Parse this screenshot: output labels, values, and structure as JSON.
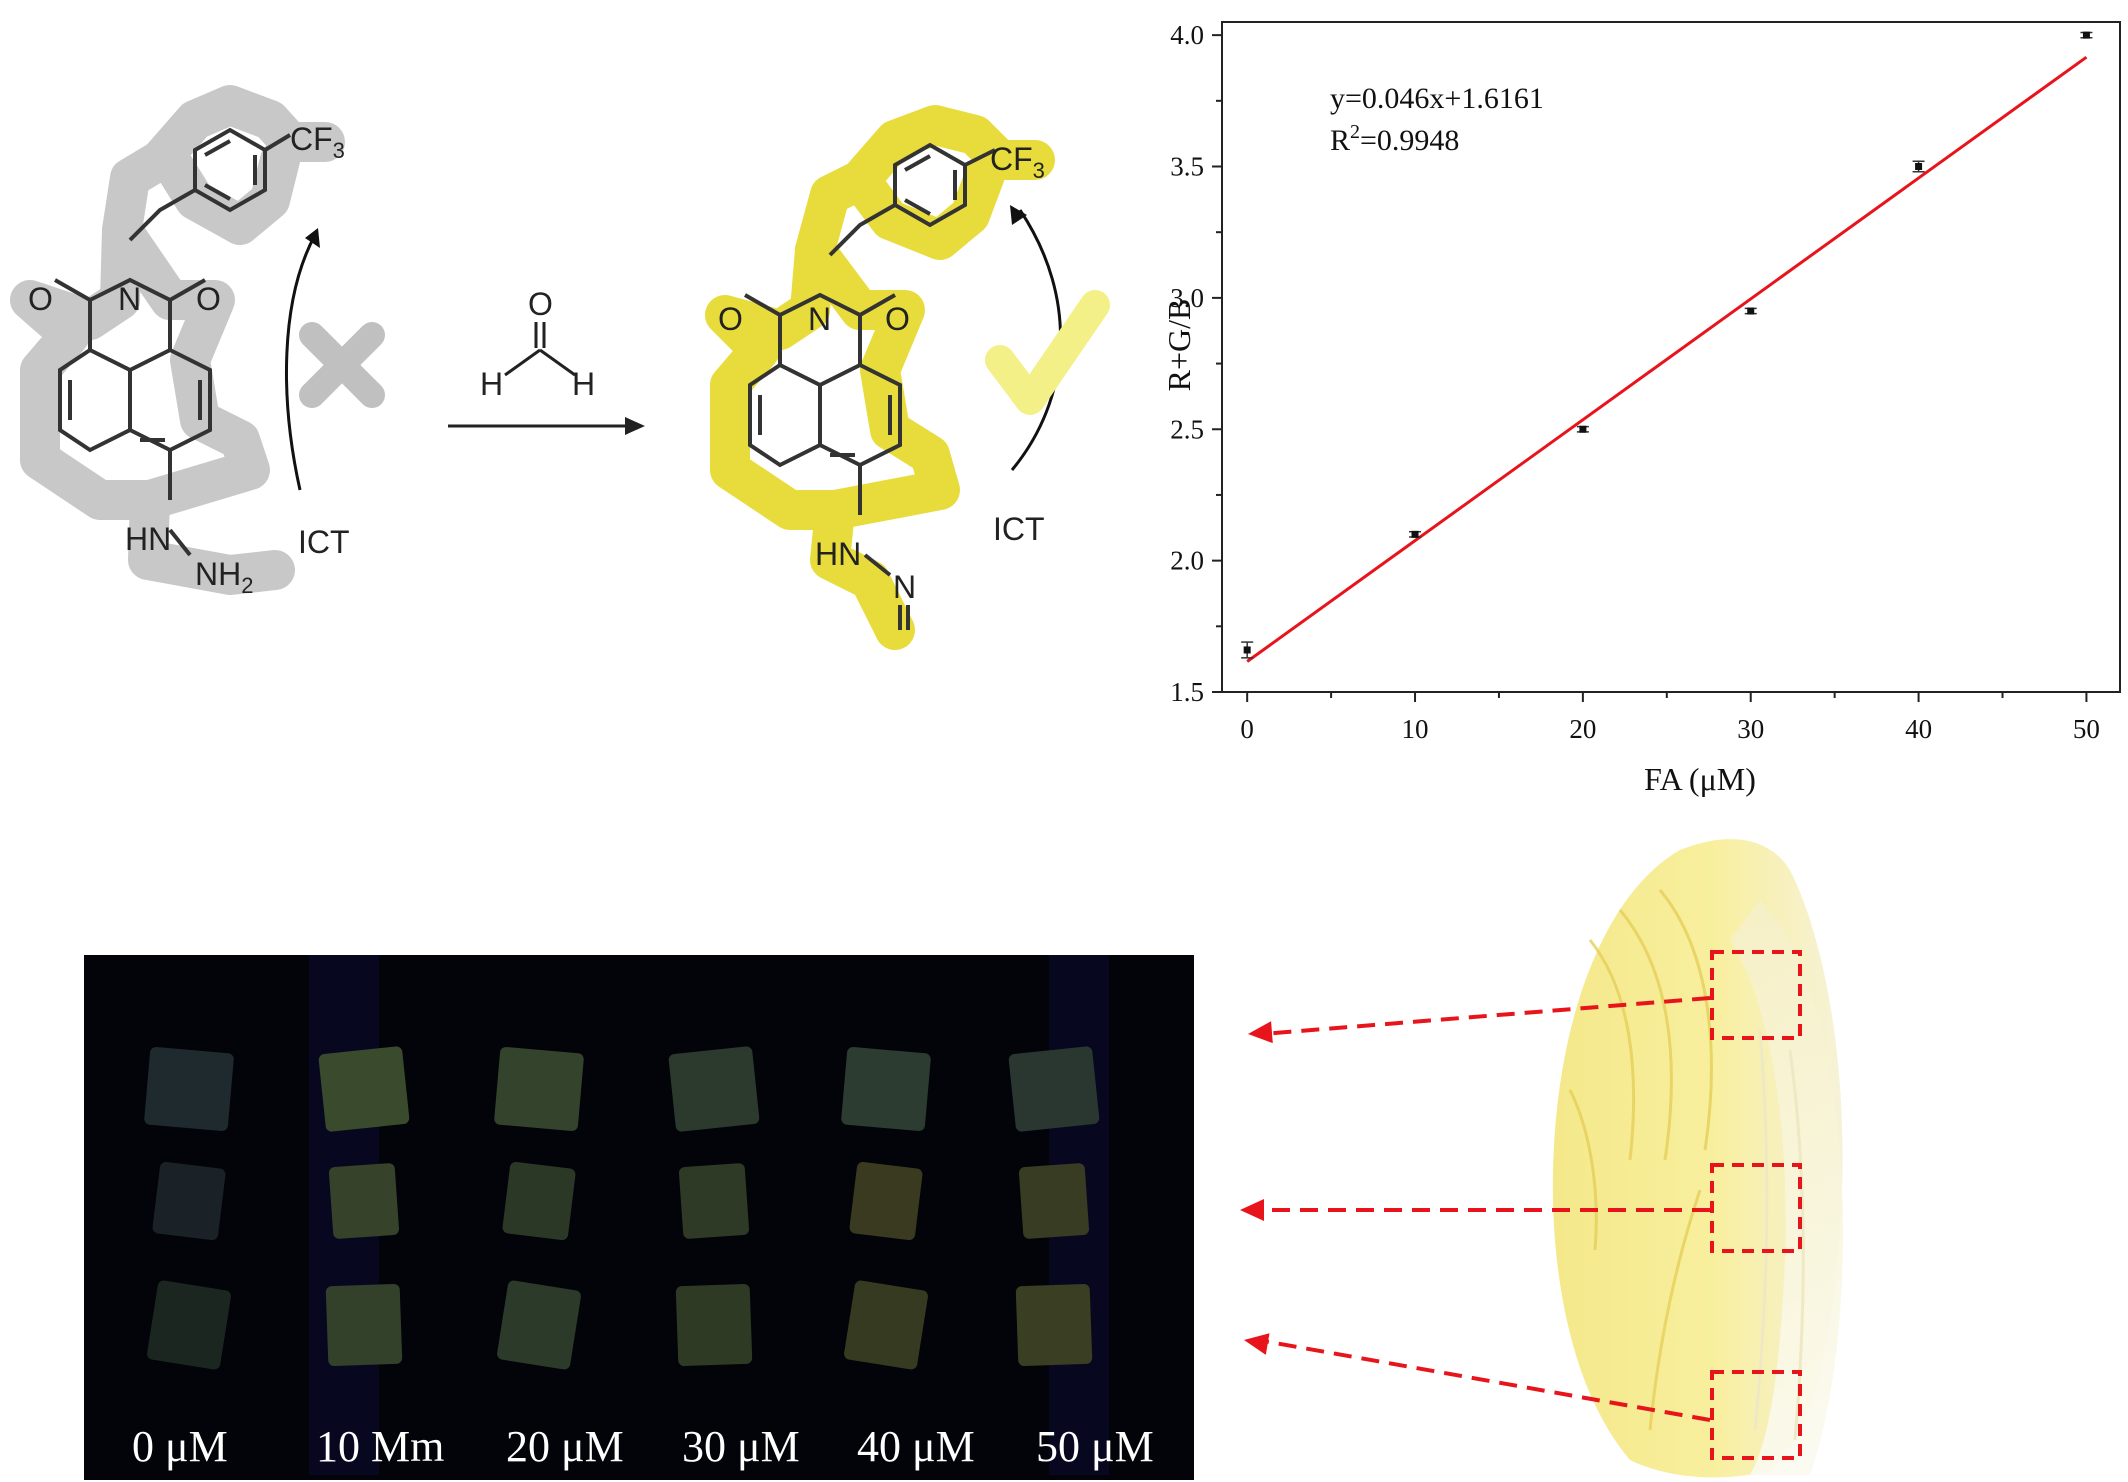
{
  "scheme": {
    "probe_labels": {
      "cf3": "CF",
      "cf3_sub": "3",
      "amine_hn": "HN",
      "amine_nh2": "NH",
      "amine_sub": "2",
      "o_left": "O",
      "o_right": "O",
      "n": "N",
      "ict": "ICT"
    },
    "reagent": {
      "o": "O",
      "h_left": "H",
      "h_right": "H"
    },
    "product_labels": {
      "cf3": "CF",
      "cf3_sub": "3",
      "hn": "HN",
      "n": "N",
      "o_left": "O",
      "o_right": "O",
      "n_imide": "N",
      "ict": "ICT"
    },
    "colors": {
      "probe_halo": "#c8c8c8",
      "product_halo": "#e8dc3c",
      "check": "#f4f088",
      "cross": "#c0c0c0"
    }
  },
  "chart_data": {
    "type": "scatter",
    "x": [
      0,
      10,
      20,
      30,
      40,
      50
    ],
    "y": [
      1.66,
      2.1,
      2.5,
      2.95,
      3.5,
      4.0
    ],
    "error": [
      0.03,
      0.01,
      0.01,
      0.01,
      0.02,
      0.01
    ],
    "fit": {
      "slope": 0.046,
      "intercept": 1.6161,
      "color": "#e8141c"
    },
    "annotation_eq": "y=0.046x+1.6161",
    "annotation_r2_prefix": "R",
    "annotation_r2_sup": "2",
    "annotation_r2_value": "=0.9948",
    "xlabel": "FA (μM)",
    "ylabel": "R+G/B",
    "xlim": [
      -1.5,
      52
    ],
    "ylim": [
      1.5,
      4.05
    ],
    "xticks": [
      "0",
      "10",
      "20",
      "30",
      "40",
      "50"
    ],
    "yticks": [
      "1.5",
      "2.0",
      "2.5",
      "3.0",
      "3.5",
      "4.0"
    ]
  },
  "photo": {
    "labels": [
      "0 μM",
      "10 Mm",
      "20 μM",
      "30 μM",
      "40 μM",
      "50 μM"
    ],
    "rows": [
      [
        "#1e2a2e",
        "#3a4a2c",
        "#34432c",
        "#2c3a2e",
        "#2c3c30",
        "#2a3630"
      ],
      [
        "#1a2228",
        "#36422a",
        "#2c3826",
        "#2e3a26",
        "#3a3a20",
        "#383c22"
      ],
      [
        "#1c2620",
        "#33402a",
        "#2c3a2a",
        "#2e3a24",
        "#363a20",
        "#3a3e22"
      ]
    ]
  },
  "cabbage": {
    "arrow_color": "#e8141c"
  }
}
